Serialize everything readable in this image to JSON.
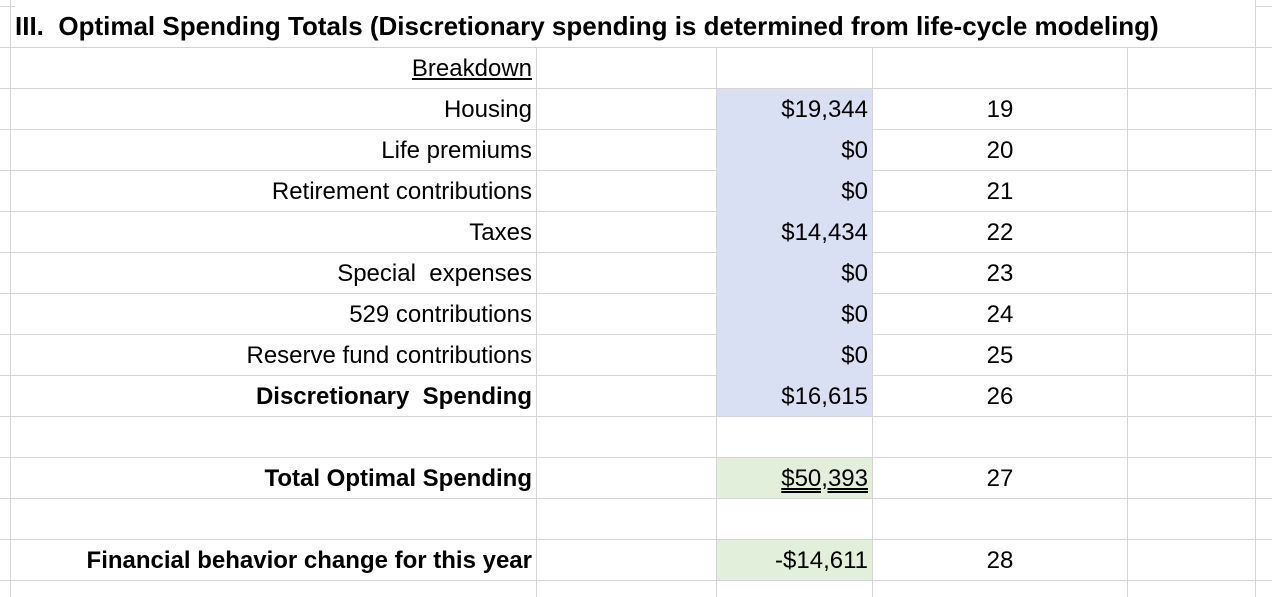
{
  "sheet": {
    "title": "III.  Optimal Spending Totals (Discretionary spending is determined from life-cycle modeling)",
    "breakdown_header": "Breakdown",
    "rows": [
      {
        "label": "Housing",
        "value": "$19,344",
        "index": "19"
      },
      {
        "label": "Life premiums",
        "value": "$0",
        "index": "20"
      },
      {
        "label": "Retirement contributions",
        "value": "$0",
        "index": "21"
      },
      {
        "label": "Taxes",
        "value": "$14,434",
        "index": "22"
      },
      {
        "label": "Special  expenses",
        "value": "$0",
        "index": "23"
      },
      {
        "label": "529 contributions",
        "value": "$0",
        "index": "24"
      },
      {
        "label": "Reserve fund contributions",
        "value": "$0",
        "index": "25"
      },
      {
        "label": "Discretionary  Spending",
        "value": "$16,615",
        "index": "26"
      }
    ],
    "total": {
      "label": "Total Optimal Spending",
      "value": "$50,393",
      "index": "27"
    },
    "behavior": {
      "label": "Financial behavior change for this year",
      "value": "-$14,611",
      "index": "28"
    }
  },
  "colors": {
    "input_fill": "#dae0f3",
    "total_fill": "#e2efdb",
    "gridline": "#d4d4d4"
  }
}
